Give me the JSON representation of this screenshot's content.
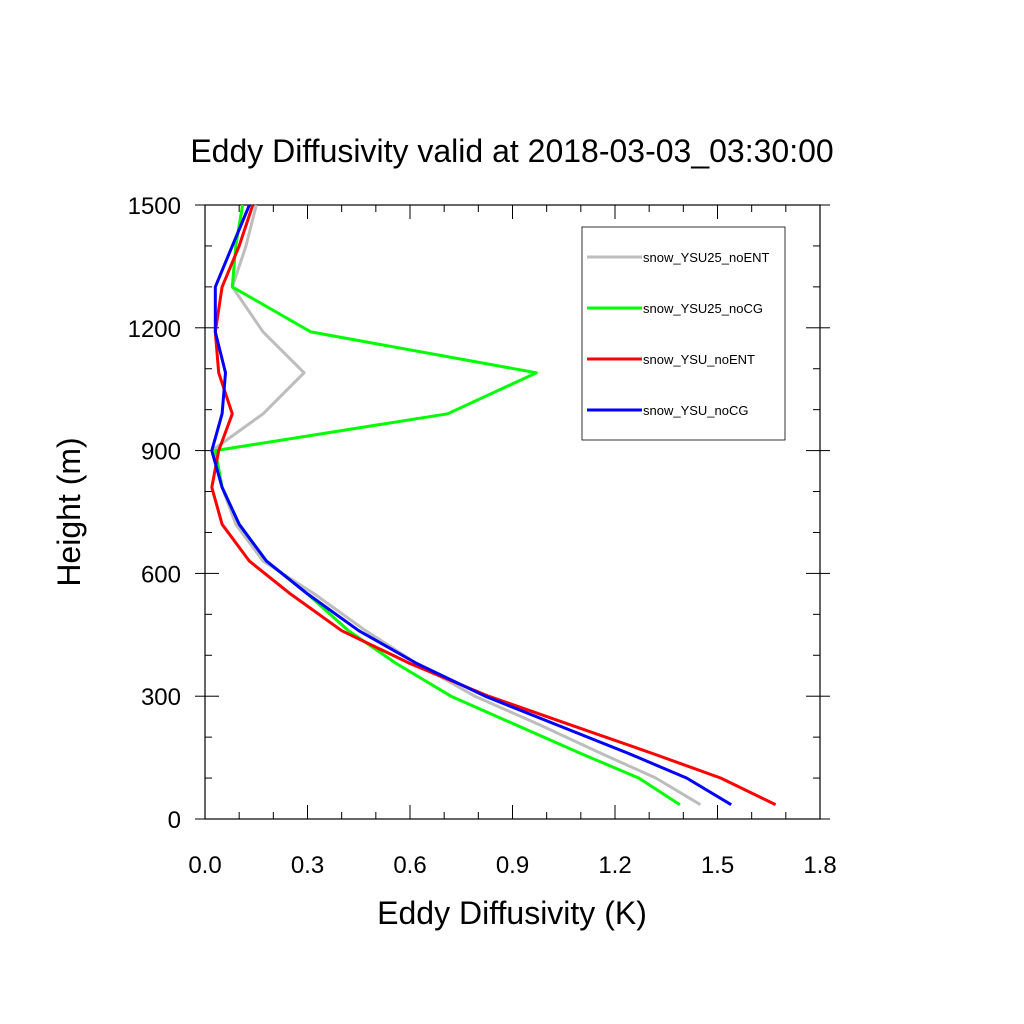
{
  "chart_data": {
    "type": "line",
    "title": "Eddy Diffusivity valid at 2018-03-03_03:30:00",
    "xlabel": "Eddy Diffusivity (K)",
    "ylabel": "Height (m)",
    "xlim": [
      0.0,
      1.8
    ],
    "ylim": [
      0,
      1500
    ],
    "x_ticks": [
      "0.0",
      "0.3",
      "0.6",
      "0.9",
      "1.2",
      "1.5",
      "1.8"
    ],
    "y_ticks": [
      "0",
      "300",
      "600",
      "900",
      "1200",
      "1500"
    ],
    "grid": false,
    "legend_position": "top-right",
    "heights": [
      35,
      100,
      160,
      230,
      300,
      380,
      460,
      550,
      630,
      720,
      810,
      900,
      990,
      1090,
      1190,
      1300,
      1400,
      1500
    ],
    "series": [
      {
        "name": "snow_YSU25_noENT",
        "color": "#bdbdbd",
        "values": [
          1.45,
          1.32,
          1.16,
          0.98,
          0.79,
          0.62,
          0.47,
          0.32,
          0.17,
          0.09,
          0.05,
          0.02,
          0.17,
          0.29,
          0.17,
          0.08,
          0.12,
          0.15
        ]
      },
      {
        "name": "snow_YSU25_noCG",
        "color": "#00ff00",
        "values": [
          1.39,
          1.27,
          1.1,
          0.91,
          0.72,
          0.56,
          0.42,
          0.3,
          0.18,
          0.1,
          0.05,
          0.03,
          0.71,
          0.97,
          0.31,
          0.08,
          0.09,
          0.11
        ]
      },
      {
        "name": "snow_YSU_noENT",
        "color": "#ff0000",
        "values": [
          1.67,
          1.51,
          1.31,
          1.07,
          0.83,
          0.6,
          0.4,
          0.25,
          0.13,
          0.05,
          0.02,
          0.04,
          0.08,
          0.04,
          0.03,
          0.05,
          0.1,
          0.14
        ]
      },
      {
        "name": "snow_YSU_noCG",
        "color": "#0000ff",
        "values": [
          1.54,
          1.41,
          1.24,
          1.03,
          0.82,
          0.62,
          0.45,
          0.3,
          0.18,
          0.1,
          0.05,
          0.02,
          0.05,
          0.06,
          0.03,
          0.03,
          0.08,
          0.13
        ]
      }
    ]
  }
}
